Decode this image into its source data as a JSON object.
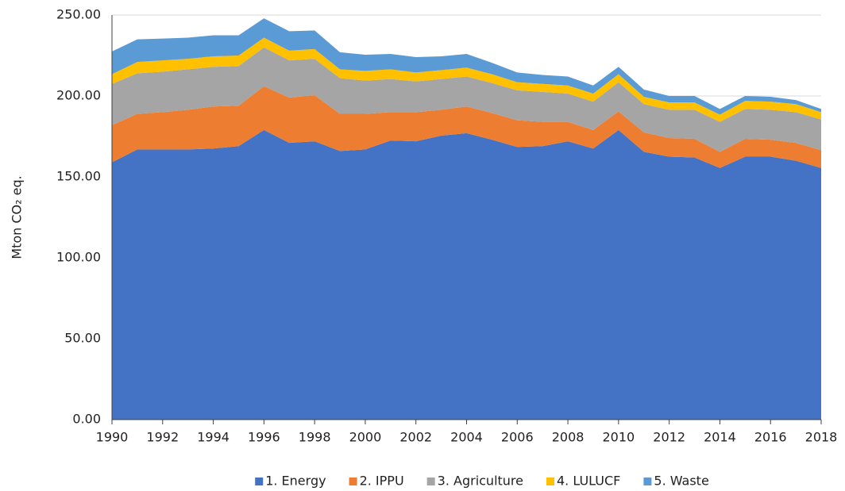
{
  "chart_data": {
    "type": "stacked_area",
    "y_label": "Mton CO₂ eq.",
    "x": [
      1990,
      1991,
      1992,
      1993,
      1994,
      1995,
      1996,
      1997,
      1998,
      1999,
      2000,
      2001,
      2002,
      2003,
      2004,
      2005,
      2006,
      2007,
      2008,
      2009,
      2010,
      2011,
      2012,
      2013,
      2014,
      2015,
      2016,
      2017,
      2018
    ],
    "xlim": [
      1990,
      2018
    ],
    "xticks": [
      1990,
      1992,
      1994,
      1996,
      1998,
      2000,
      2002,
      2004,
      2006,
      2008,
      2010,
      2012,
      2014,
      2016,
      2018
    ],
    "ylim": [
      0,
      250
    ],
    "yticks": [
      {
        "value": 0,
        "label": "0.00"
      },
      {
        "value": 50,
        "label": "50.00"
      },
      {
        "value": 100,
        "label": "100.00"
      },
      {
        "value": 150,
        "label": "150.00"
      },
      {
        "value": 200,
        "label": "200.00"
      },
      {
        "value": 250,
        "label": "250.00"
      }
    ],
    "grid": true,
    "legend": "bottom",
    "series": [
      {
        "name": "1. Energy",
        "color": "#4472c4",
        "values": [
          159,
          167,
          167,
          167,
          167.5,
          169,
          179,
          171,
          172,
          166,
          167,
          172.5,
          172,
          175.5,
          177,
          173,
          168.5,
          169,
          172,
          167.5,
          179,
          165.5,
          162.5,
          162,
          155.5,
          162.5,
          162.5,
          160,
          155.5
        ]
      },
      {
        "name": "2. IPPU",
        "color": "#ed7d31",
        "values": [
          23,
          22,
          23,
          24.5,
          26,
          25,
          27,
          28,
          28.5,
          23,
          22,
          17.5,
          18,
          16,
          16.5,
          16.5,
          16.5,
          15,
          12,
          11.5,
          11.5,
          12,
          11.5,
          11.5,
          10,
          11,
          10.5,
          11,
          11
        ]
      },
      {
        "name": "3. Agriculture",
        "color": "#a5a5a5",
        "values": [
          25.5,
          25,
          25,
          25,
          24.5,
          24.5,
          24,
          23,
          22.5,
          22,
          20.5,
          20.5,
          19,
          19,
          18.5,
          18.5,
          18.5,
          18.5,
          17.5,
          17.5,
          18,
          17.5,
          17.5,
          18,
          18.5,
          18.5,
          18.5,
          19,
          19
        ]
      },
      {
        "name": "4. LULUCF",
        "color": "#ffc000",
        "values": [
          6,
          7,
          7,
          6.5,
          6.5,
          6.5,
          6,
          6,
          6,
          5.5,
          6,
          6,
          5.5,
          5.5,
          5.5,
          5.5,
          5,
          5,
          5,
          5,
          5,
          4.5,
          4.5,
          4.5,
          4.5,
          5,
          5,
          5,
          4.5
        ]
      },
      {
        "name": "5. Waste",
        "color": "#5b9bd5",
        "values": [
          14,
          14,
          13.5,
          13,
          13,
          12.5,
          12,
          12,
          11.5,
          10.5,
          10,
          9.5,
          9.5,
          8.5,
          8.5,
          7,
          6,
          5.5,
          5.5,
          5,
          4.5,
          4.5,
          4,
          4,
          3.5,
          3,
          3,
          2.5,
          2
        ]
      }
    ]
  }
}
